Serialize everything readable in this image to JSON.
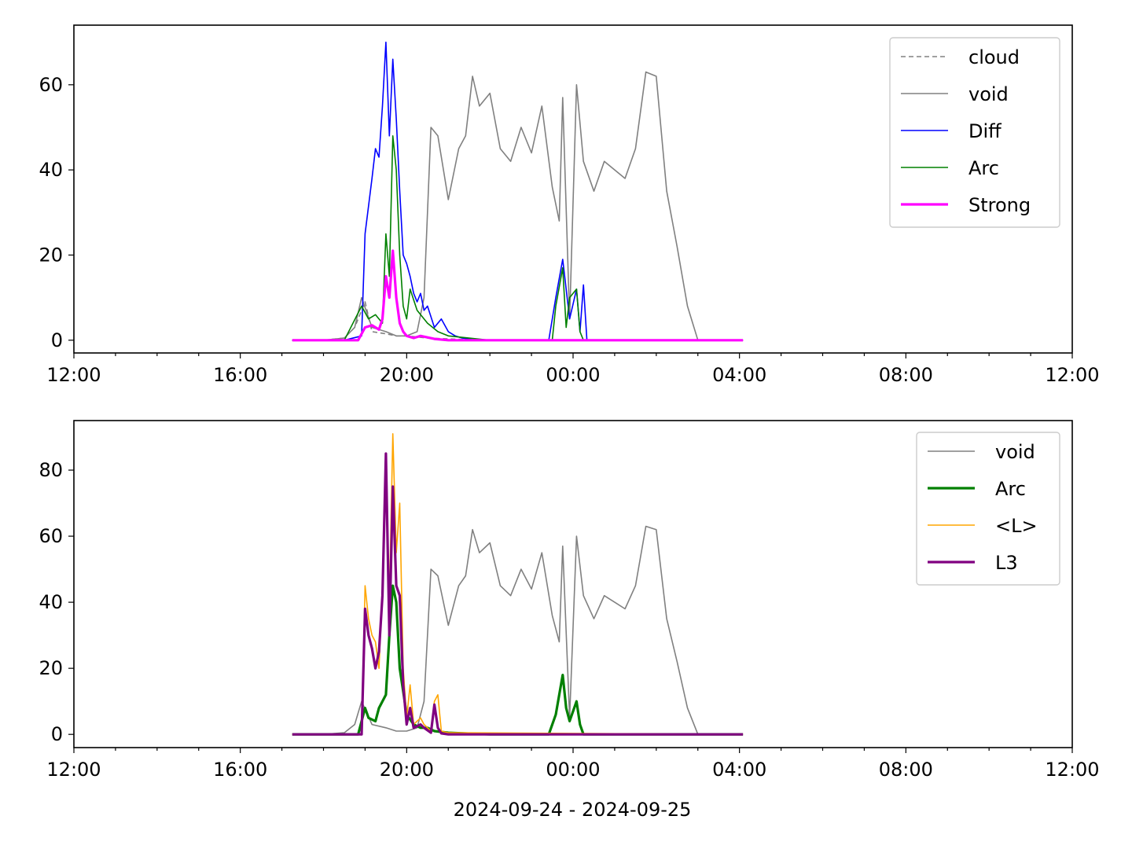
{
  "xlabel": "2024-09-24 - 2024-09-25",
  "chart_data": [
    {
      "type": "line",
      "title": "",
      "xlabel": "",
      "ylabel": "",
      "xlim": [
        "2024-09-24 12:00",
        "2024-09-25 12:00"
      ],
      "ylim": [
        -3,
        74
      ],
      "x_ticks": [
        "12:00",
        "16:00",
        "20:00",
        "00:00",
        "04:00",
        "08:00",
        "12:00"
      ],
      "y_ticks": [
        0,
        20,
        40,
        60
      ],
      "legend_position": "top-right",
      "grid": false,
      "series": [
        {
          "name": "cloud",
          "color": "#808080",
          "style": "dashed",
          "x": [
            "17:15",
            "18:00",
            "18:30",
            "18:45",
            "19:00",
            "19:10",
            "19:30",
            "19:45",
            "20:00",
            "20:30",
            "21:00",
            "22:00",
            "23:00",
            "00:00",
            "04:05"
          ],
          "values": [
            0,
            0,
            0.5,
            3,
            9,
            2,
            1.5,
            1,
            1,
            0.5,
            0.3,
            0,
            0,
            0,
            0
          ]
        },
        {
          "name": "void",
          "color": "#808080",
          "style": "solid",
          "x": [
            "17:15",
            "18:00",
            "18:30",
            "18:45",
            "18:55",
            "19:10",
            "19:30",
            "19:45",
            "20:00",
            "20:15",
            "20:25",
            "20:35",
            "20:45",
            "21:00",
            "21:15",
            "21:25",
            "21:35",
            "21:45",
            "22:00",
            "22:15",
            "22:30",
            "22:45",
            "23:00",
            "23:15",
            "23:30",
            "23:40",
            "23:45",
            "23:55",
            "00:05",
            "00:15",
            "00:30",
            "00:45",
            "01:00",
            "01:15",
            "01:30",
            "01:45",
            "02:00",
            "02:15",
            "02:30",
            "02:45",
            "03:00",
            "04:05"
          ],
          "values": [
            0,
            0,
            0.5,
            3,
            10,
            3,
            2,
            1,
            1,
            2,
            10,
            50,
            48,
            33,
            45,
            48,
            62,
            55,
            58,
            45,
            42,
            50,
            44,
            55,
            36,
            28,
            57,
            5,
            60,
            42,
            35,
            42,
            40,
            38,
            45,
            63,
            62,
            35,
            22,
            8,
            0,
            0
          ]
        },
        {
          "name": "Diff",
          "color": "#0000ff",
          "style": "solid",
          "x": [
            "17:15",
            "18:30",
            "18:55",
            "19:00",
            "19:10",
            "19:15",
            "19:20",
            "19:25",
            "19:30",
            "19:35",
            "19:40",
            "19:45",
            "19:50",
            "19:55",
            "20:00",
            "20:05",
            "20:10",
            "20:15",
            "20:20",
            "20:25",
            "20:30",
            "20:40",
            "20:50",
            "21:00",
            "21:10",
            "21:20",
            "21:40",
            "22:00",
            "23:00",
            "23:25",
            "23:35",
            "23:45",
            "23:55",
            "00:05",
            "00:10",
            "00:15",
            "00:20",
            "04:05"
          ],
          "values": [
            0,
            0,
            1,
            25,
            38,
            45,
            43,
            55,
            70,
            48,
            66,
            52,
            35,
            20,
            18,
            15,
            11,
            9,
            11,
            7,
            8,
            3,
            5,
            2,
            1,
            0.5,
            0,
            0,
            0,
            0,
            10,
            19,
            5,
            12,
            2,
            13,
            0,
            0
          ]
        },
        {
          "name": "Arc",
          "color": "#008000",
          "style": "solid",
          "x": [
            "17:15",
            "18:30",
            "18:55",
            "19:05",
            "19:15",
            "19:25",
            "19:30",
            "19:35",
            "19:40",
            "19:45",
            "19:50",
            "19:55",
            "20:00",
            "20:05",
            "20:15",
            "20:30",
            "20:45",
            "21:00",
            "22:00",
            "23:00",
            "23:30",
            "23:35",
            "23:45",
            "23:50",
            "23:55",
            "00:05",
            "00:10",
            "00:15",
            "04:05"
          ],
          "values": [
            0,
            0,
            8,
            5,
            6,
            4,
            25,
            15,
            48,
            40,
            20,
            8,
            5,
            12,
            7,
            4,
            2,
            1,
            0,
            0,
            0,
            8,
            17,
            3,
            10,
            12,
            2,
            0,
            0
          ]
        },
        {
          "name": "Strong",
          "color": "#ff00ff",
          "style": "solid-thick",
          "x": [
            "17:15",
            "18:50",
            "19:00",
            "19:10",
            "19:20",
            "19:25",
            "19:30",
            "19:35",
            "19:40",
            "19:45",
            "19:50",
            "19:55",
            "20:00",
            "20:10",
            "20:20",
            "20:40",
            "21:00",
            "04:05"
          ],
          "values": [
            0,
            0,
            3,
            3.5,
            2.5,
            5,
            15,
            10,
            21,
            10,
            4,
            2,
            1,
            0.5,
            1,
            0.3,
            0,
            0
          ]
        }
      ]
    },
    {
      "type": "line",
      "title": "",
      "xlabel": "2024-09-24 - 2024-09-25",
      "ylabel": "",
      "xlim": [
        "2024-09-24 12:00",
        "2024-09-25 12:00"
      ],
      "ylim": [
        -4,
        95
      ],
      "x_ticks": [
        "12:00",
        "16:00",
        "20:00",
        "00:00",
        "04:00",
        "08:00",
        "12:00"
      ],
      "y_ticks": [
        0,
        20,
        40,
        60,
        80
      ],
      "legend_position": "top-right",
      "grid": false,
      "series": [
        {
          "name": "void",
          "color": "#808080",
          "style": "solid",
          "x": [
            "17:15",
            "18:00",
            "18:30",
            "18:45",
            "18:55",
            "19:10",
            "19:30",
            "19:45",
            "20:00",
            "20:15",
            "20:25",
            "20:35",
            "20:45",
            "21:00",
            "21:15",
            "21:25",
            "21:35",
            "21:45",
            "22:00",
            "22:15",
            "22:30",
            "22:45",
            "23:00",
            "23:15",
            "23:30",
            "23:40",
            "23:45",
            "23:55",
            "00:05",
            "00:15",
            "00:30",
            "00:45",
            "01:00",
            "01:15",
            "01:30",
            "01:45",
            "02:00",
            "02:15",
            "02:30",
            "02:45",
            "03:00",
            "04:05"
          ],
          "values": [
            0,
            0,
            0.5,
            3,
            10,
            3,
            2,
            1,
            1,
            2,
            10,
            50,
            48,
            33,
            45,
            48,
            62,
            55,
            58,
            45,
            42,
            50,
            44,
            55,
            36,
            28,
            57,
            5,
            60,
            42,
            35,
            42,
            40,
            38,
            45,
            63,
            62,
            35,
            22,
            8,
            0,
            0
          ]
        },
        {
          "name": "Arc",
          "color": "#008000",
          "style": "solid-thick",
          "x": [
            "17:15",
            "18:50",
            "19:00",
            "19:05",
            "19:15",
            "19:20",
            "19:30",
            "19:35",
            "19:40",
            "19:45",
            "19:50",
            "20:00",
            "20:10",
            "20:20",
            "20:30",
            "20:40",
            "21:00",
            "22:00",
            "23:00",
            "23:25",
            "23:35",
            "23:45",
            "23:50",
            "23:55",
            "00:05",
            "00:10",
            "00:15",
            "04:05"
          ],
          "values": [
            0,
            0,
            8,
            5,
            4,
            8,
            12,
            30,
            45,
            40,
            20,
            6,
            3,
            2,
            2,
            1,
            0.5,
            0,
            0,
            0,
            6,
            18,
            8,
            4,
            10,
            3,
            0,
            0
          ]
        },
        {
          "name": "<L>",
          "color": "#ffa500",
          "style": "solid",
          "x": [
            "17:15",
            "18:55",
            "19:00",
            "19:05",
            "19:10",
            "19:15",
            "19:20",
            "19:25",
            "19:30",
            "19:35",
            "19:40",
            "19:45",
            "19:50",
            "19:55",
            "20:00",
            "20:05",
            "20:10",
            "20:20",
            "20:25",
            "20:35",
            "20:40",
            "20:45",
            "20:50",
            "21:00",
            "04:05"
          ],
          "values": [
            0,
            0,
            45,
            35,
            30,
            28,
            20,
            45,
            80,
            40,
            91,
            55,
            70,
            20,
            5,
            15,
            3,
            5,
            3,
            1,
            10,
            12,
            1,
            0.5,
            0
          ]
        },
        {
          "name": "L3",
          "color": "#800080",
          "style": "solid-thick",
          "x": [
            "17:15",
            "18:55",
            "19:00",
            "19:05",
            "19:10",
            "19:15",
            "19:20",
            "19:25",
            "19:30",
            "19:35",
            "19:40",
            "19:45",
            "19:50",
            "19:55",
            "20:00",
            "20:05",
            "20:10",
            "20:20",
            "20:25",
            "20:35",
            "20:40",
            "20:45",
            "20:50",
            "21:00",
            "04:05"
          ],
          "values": [
            0,
            0,
            38,
            30,
            26,
            20,
            25,
            42,
            85,
            30,
            75,
            45,
            42,
            15,
            3,
            8,
            2,
            3,
            2,
            0.5,
            9,
            2,
            0.3,
            0,
            0
          ]
        }
      ]
    }
  ]
}
